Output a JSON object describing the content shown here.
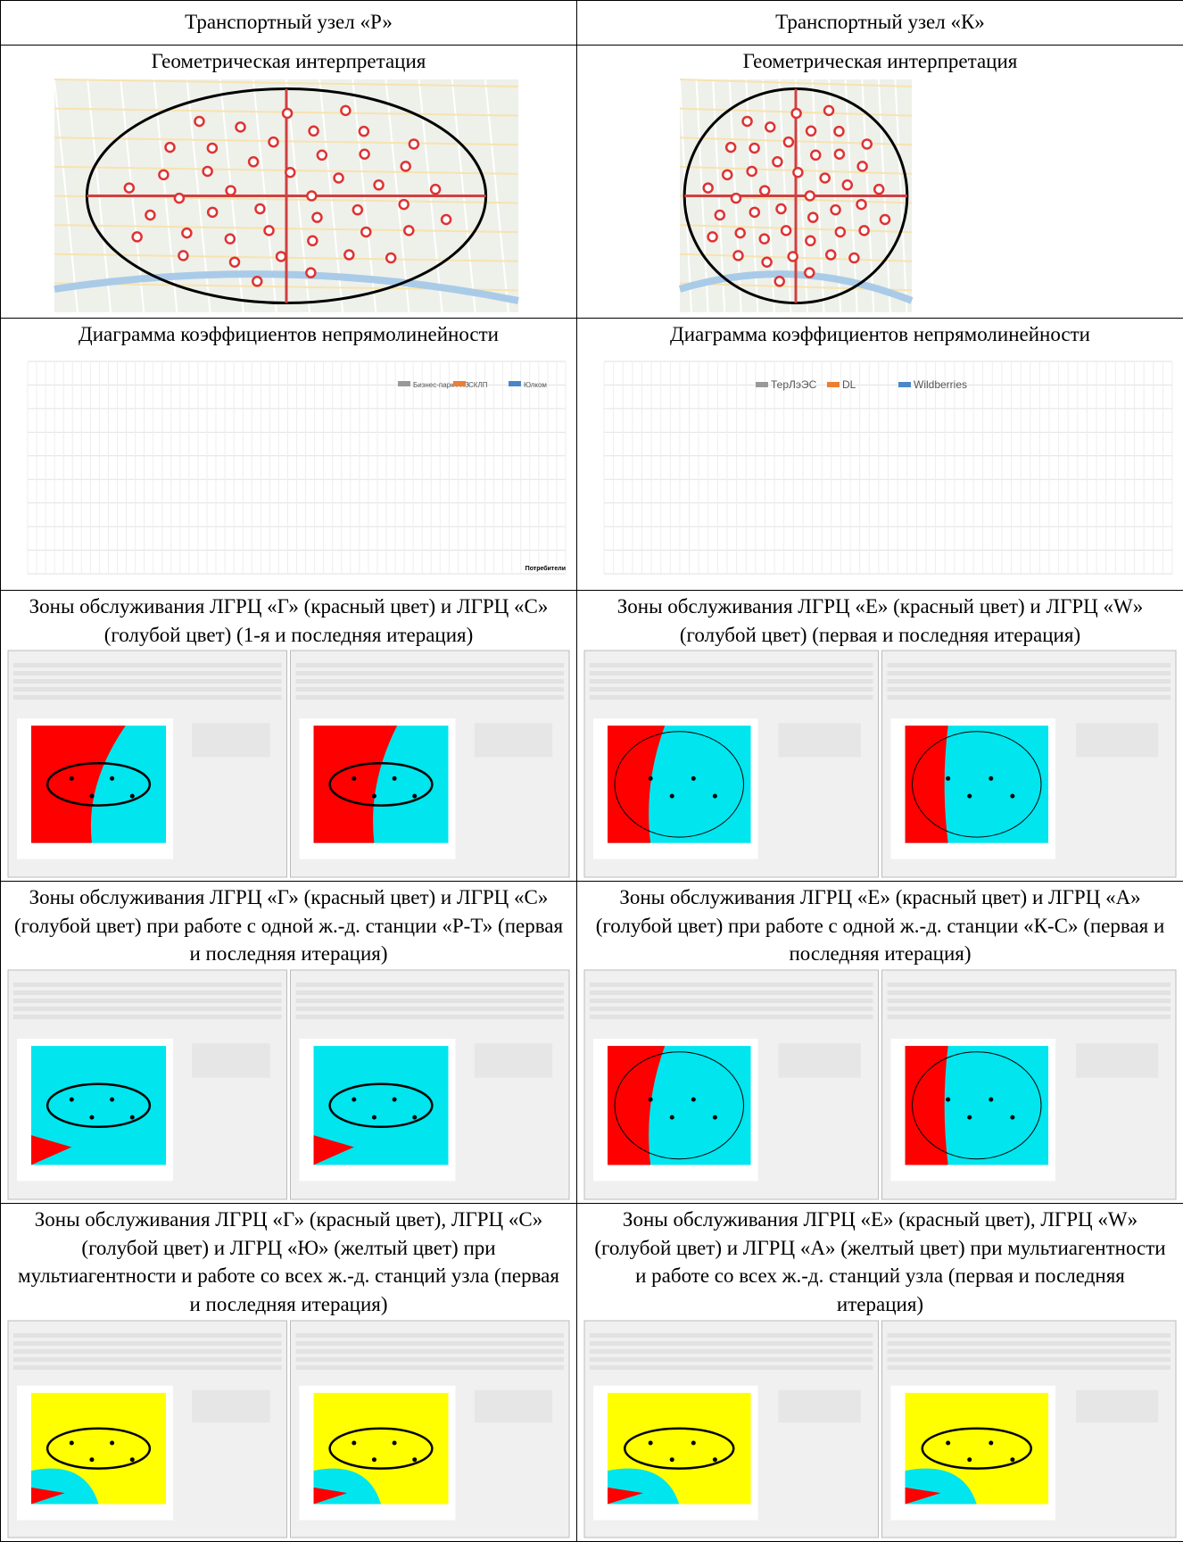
{
  "table": {
    "header": [
      "Транспортный узел «Р»",
      "Транспортный узел «К»"
    ],
    "rows": [
      [
        "Геометрическая интерпретация",
        "Геометрическая интерпретация"
      ],
      [
        "Диаграмма коэффициентов непрямолинейности",
        "Диаграмма коэффициентов непрямолинейности"
      ],
      [
        "Зоны обслуживания ЛГРЦ «Г» (красный цвет) и ЛГРЦ «С» (голубой цвет) (1-я и последняя итерация)",
        "Зоны обслуживания ЛГРЦ «Е» (красный цвет) и ЛГРЦ «W» (голубой цвет) (первая и последняя итерация)"
      ],
      [
        "Зоны обслуживания ЛГРЦ «Г» (красный цвет) и ЛГРЦ «С» (голубой цвет) при работе с одной ж.-д. станции «Р-Т» (первая и последняя итерация)",
        "Зоны обслуживания ЛГРЦ «Е» (красный цвет) и ЛГРЦ «А» (голубой цвет) при работе с одной ж.-д. станции «К-С» (первая и последняя итерация)"
      ],
      [
        "Зоны обслуживания ЛГРЦ «Г» (красный цвет), ЛГРЦ «С» (голубой цвет) и ЛГРЦ «Ю» (желтый цвет) при мультиагентности и работе со всех ж.-д. станций узла (первая и последняя итерация)",
        "Зоны обслуживания ЛГРЦ «Е» (красный цвет), ЛГРЦ «W» (голубой цвет) и ЛГРЦ «А» (желтый цвет) при мультиагентности и работе со всех ж.-д. станций узла (первая и последняя итерация)"
      ]
    ]
  },
  "legends": [
    [
      "Бизнес-парк ГПЗ",
      "СКЛП",
      "Юлком"
    ],
    [
      "ТерЛэЭС",
      "DL",
      "Wildberries"
    ]
  ],
  "x_axis_label": "Потребители"
}
